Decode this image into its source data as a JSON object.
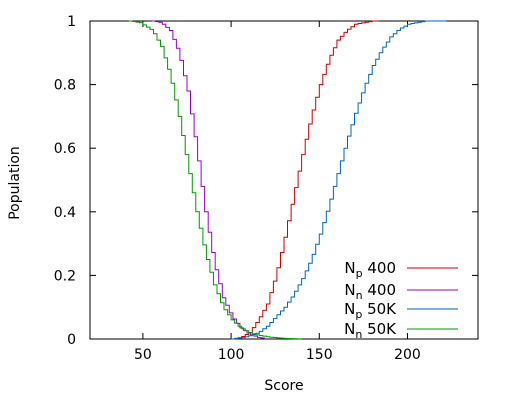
{
  "chart_data": {
    "type": "line",
    "xlabel": "Score",
    "ylabel": "Population",
    "xlim": [
      20,
      240
    ],
    "ylim": [
      0,
      1
    ],
    "x_ticks": [
      50,
      100,
      150,
      200
    ],
    "y_ticks": [
      0,
      0.2,
      0.4,
      0.6,
      0.8,
      1
    ],
    "step_width": 2,
    "grid": false,
    "legend_position": "bottom-right",
    "series": [
      {
        "name": "Np 400",
        "base": "N",
        "sub": "p",
        "suffix": " 400",
        "color": "#cc0000",
        "direction": "rising",
        "x": [
          100,
          105,
          110,
          115,
          120,
          125,
          130,
          135,
          140,
          145,
          150,
          155,
          160,
          165,
          170,
          175,
          180,
          184
        ],
        "y": [
          0.0,
          0.005,
          0.02,
          0.06,
          0.11,
          0.2,
          0.32,
          0.45,
          0.58,
          0.7,
          0.8,
          0.88,
          0.94,
          0.97,
          0.99,
          0.995,
          1.0,
          1.0
        ]
      },
      {
        "name": "Nn 400",
        "base": "N",
        "sub": "n",
        "suffix": " 400",
        "color": "#9900cc",
        "direction": "falling",
        "x": [
          55,
          60,
          65,
          70,
          75,
          80,
          85,
          90,
          95,
          100,
          105,
          110,
          115,
          120
        ],
        "y": [
          1.0,
          0.995,
          0.97,
          0.9,
          0.78,
          0.6,
          0.4,
          0.24,
          0.13,
          0.07,
          0.035,
          0.015,
          0.005,
          0.0
        ]
      },
      {
        "name": "Np 50K",
        "base": "N",
        "sub": "p",
        "suffix": " 50K",
        "color": "#0066bb",
        "direction": "rising",
        "x": [
          100,
          105,
          110,
          115,
          120,
          125,
          130,
          135,
          140,
          145,
          150,
          155,
          160,
          165,
          170,
          175,
          180,
          185,
          190,
          195,
          200,
          205,
          210,
          215,
          222
        ],
        "y": [
          0.0,
          0.003,
          0.01,
          0.02,
          0.04,
          0.07,
          0.1,
          0.14,
          0.19,
          0.25,
          0.33,
          0.42,
          0.52,
          0.62,
          0.71,
          0.79,
          0.86,
          0.91,
          0.95,
          0.975,
          0.99,
          0.995,
          1.0,
          1.0,
          1.0
        ]
      },
      {
        "name": "Nn 50K",
        "base": "N",
        "sub": "n",
        "suffix": " 50K",
        "color": "#009900",
        "direction": "falling",
        "x": [
          42,
          48,
          55,
          60,
          65,
          70,
          75,
          80,
          85,
          90,
          95,
          100,
          105,
          110,
          115,
          120,
          125,
          130,
          135,
          140
        ],
        "y": [
          1.0,
          0.995,
          0.97,
          0.92,
          0.83,
          0.7,
          0.55,
          0.4,
          0.27,
          0.17,
          0.1,
          0.06,
          0.035,
          0.02,
          0.012,
          0.007,
          0.004,
          0.002,
          0.001,
          0.0
        ]
      }
    ]
  }
}
